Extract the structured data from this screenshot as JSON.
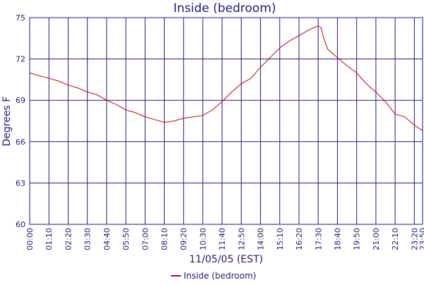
{
  "chart_data": {
    "type": "line",
    "title": "Inside (bedroom)",
    "x_label": "11/05/05 (EST)",
    "y_label": "Degrees F",
    "x": [
      0,
      30,
      70,
      105,
      140,
      175,
      210,
      245,
      280,
      315,
      350,
      385,
      420,
      455,
      490,
      525,
      560,
      595,
      630,
      665,
      700,
      735,
      770,
      805,
      840,
      875,
      910,
      945,
      980,
      1015,
      1050,
      1060,
      1070,
      1085,
      1120,
      1155,
      1190,
      1225,
      1260,
      1295,
      1330,
      1365,
      1400,
      1430
    ],
    "series": [
      {
        "name": "Inside (bedroom)",
        "color": "#cc0000",
        "values": [
          71.0,
          70.8,
          70.6,
          70.4,
          70.1,
          69.9,
          69.6,
          69.4,
          69.0,
          68.7,
          68.3,
          68.1,
          67.8,
          67.6,
          67.4,
          67.5,
          67.7,
          67.8,
          67.9,
          68.3,
          68.9,
          69.6,
          70.2,
          70.6,
          71.4,
          72.1,
          72.8,
          73.3,
          73.7,
          74.1,
          74.4,
          74.3,
          73.5,
          72.7,
          72.1,
          71.5,
          71.0,
          70.2,
          69.6,
          68.9,
          68.0,
          67.8,
          67.2,
          66.8
        ]
      }
    ],
    "xlim": [
      0,
      1430
    ],
    "xticks": [
      {
        "value": 0,
        "label": "00:00"
      },
      {
        "value": 70,
        "label": "01:10"
      },
      {
        "value": 140,
        "label": "02:20"
      },
      {
        "value": 210,
        "label": "03:30"
      },
      {
        "value": 280,
        "label": "04:40"
      },
      {
        "value": 350,
        "label": "05:50"
      },
      {
        "value": 420,
        "label": "07:00"
      },
      {
        "value": 490,
        "label": "08:10"
      },
      {
        "value": 560,
        "label": "09:20"
      },
      {
        "value": 630,
        "label": "10:30"
      },
      {
        "value": 700,
        "label": "11:40"
      },
      {
        "value": 770,
        "label": "12:50"
      },
      {
        "value": 840,
        "label": "14:00"
      },
      {
        "value": 910,
        "label": "15:10"
      },
      {
        "value": 980,
        "label": "16:20"
      },
      {
        "value": 1050,
        "label": "17:30"
      },
      {
        "value": 1120,
        "label": "18:40"
      },
      {
        "value": 1190,
        "label": "19:50"
      },
      {
        "value": 1260,
        "label": "21:00"
      },
      {
        "value": 1330,
        "label": "22:10"
      },
      {
        "value": 1400,
        "label": "23:20"
      },
      {
        "value": 1430,
        "label": "23:50"
      }
    ],
    "ylim": [
      60,
      75
    ],
    "yticks": [
      60,
      63,
      66,
      69,
      72,
      75
    ],
    "grid": true,
    "legend": "bottom"
  }
}
